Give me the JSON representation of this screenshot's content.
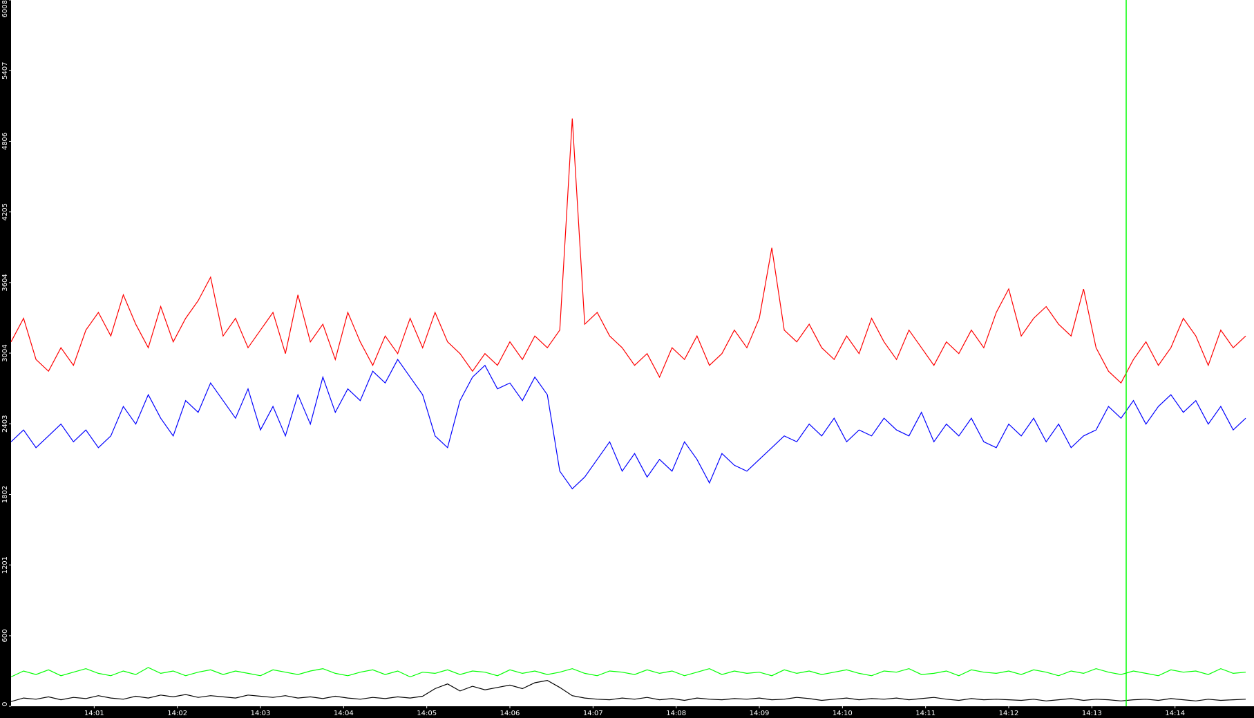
{
  "chart_data": {
    "type": "line",
    "x": [
      840,
      840.15,
      840.3,
      840.45,
      840.6,
      840.75,
      840.9,
      841.05,
      841.2,
      841.35,
      841.5,
      841.65,
      841.8,
      841.95,
      842.1,
      842.25,
      842.4,
      842.55,
      842.7,
      842.85,
      843,
      843.15,
      843.3,
      843.45,
      843.6,
      843.75,
      843.9,
      844.05,
      844.2,
      844.35,
      844.5,
      844.65,
      844.8,
      844.95,
      845.1,
      845.25,
      845.4,
      845.55,
      845.7,
      845.85,
      846,
      846.15,
      846.3,
      846.45,
      846.6,
      846.75,
      846.9,
      847.05,
      847.2,
      847.35,
      847.5,
      847.65,
      847.8,
      847.95,
      848.1,
      848.25,
      848.4,
      848.55,
      848.7,
      848.85,
      849,
      849.15,
      849.3,
      849.45,
      849.6,
      849.75,
      849.9,
      850.05,
      850.2,
      850.35,
      850.5,
      850.65,
      850.8,
      850.95,
      851.1,
      851.25,
      851.4,
      851.55,
      851.7,
      851.85,
      852,
      852.15,
      852.3,
      852.45,
      852.6,
      852.75,
      852.9,
      853.05,
      853.2,
      853.35,
      853.5,
      853.65,
      853.8,
      853.95,
      854.1,
      854.25,
      854.4,
      854.55,
      854.7,
      854.85
    ],
    "series": [
      {
        "color": "#ff0000",
        "values": [
          3100,
          3300,
          2950,
          2850,
          3050,
          2900,
          3200,
          3350,
          3150,
          3500,
          3250,
          3050,
          3400,
          3100,
          3300,
          3450,
          3650,
          3150,
          3300,
          3050,
          3200,
          3350,
          3000,
          3500,
          3100,
          3250,
          2950,
          3350,
          3100,
          2900,
          3150,
          3000,
          3300,
          3050,
          3350,
          3100,
          3000,
          2850,
          3000,
          2900,
          3100,
          2950,
          3150,
          3050,
          3200,
          5000,
          3250,
          3350,
          3150,
          3050,
          2900,
          3000,
          2800,
          3050,
          2950,
          3150,
          2900,
          3000,
          3200,
          3050,
          3300,
          3900,
          3200,
          3100,
          3250,
          3050,
          2950,
          3150,
          3000,
          3300,
          3100,
          2950,
          3200,
          3050,
          2900,
          3100,
          3000,
          3200,
          3050,
          3350,
          3550,
          3150,
          3300,
          3400,
          3250,
          3150,
          3550,
          3050,
          2850,
          2750,
          2950,
          3100,
          2900,
          3050,
          3300,
          3150,
          2900,
          3200,
          3050,
          3150
        ]
      },
      {
        "color": "#0000ff",
        "values": [
          2250,
          2350,
          2200,
          2300,
          2400,
          2250,
          2350,
          2200,
          2300,
          2550,
          2400,
          2650,
          2450,
          2300,
          2600,
          2500,
          2750,
          2600,
          2450,
          2700,
          2350,
          2550,
          2300,
          2650,
          2400,
          2800,
          2500,
          2700,
          2600,
          2850,
          2750,
          2950,
          2800,
          2650,
          2300,
          2200,
          2600,
          2800,
          2900,
          2700,
          2750,
          2600,
          2800,
          2650,
          2000,
          1850,
          1950,
          2100,
          2250,
          2000,
          2150,
          1950,
          2100,
          2000,
          2250,
          2100,
          1900,
          2150,
          2050,
          2000,
          2100,
          2200,
          2300,
          2250,
          2400,
          2300,
          2450,
          2250,
          2350,
          2300,
          2450,
          2350,
          2300,
          2500,
          2250,
          2400,
          2300,
          2450,
          2250,
          2200,
          2400,
          2300,
          2450,
          2250,
          2400,
          2200,
          2300,
          2350,
          2550,
          2450,
          2600,
          2400,
          2550,
          2650,
          2500,
          2600,
          2400,
          2550,
          2350,
          2450
        ]
      },
      {
        "color": "#00ff00",
        "values": [
          250,
          300,
          270,
          310,
          260,
          290,
          320,
          280,
          260,
          300,
          270,
          330,
          280,
          300,
          260,
          290,
          310,
          270,
          300,
          280,
          260,
          310,
          290,
          270,
          300,
          320,
          280,
          260,
          290,
          310,
          270,
          300,
          250,
          290,
          280,
          310,
          270,
          300,
          290,
          260,
          310,
          280,
          300,
          270,
          290,
          320,
          280,
          260,
          300,
          290,
          270,
          310,
          280,
          300,
          260,
          290,
          320,
          270,
          300,
          280,
          290,
          260,
          310,
          280,
          300,
          270,
          290,
          310,
          280,
          260,
          300,
          290,
          320,
          270,
          280,
          300,
          260,
          310,
          290,
          280,
          300,
          270,
          310,
          290,
          260,
          300,
          280,
          320,
          290,
          270,
          300,
          280,
          260,
          310,
          290,
          300,
          270,
          320,
          280,
          290
        ]
      },
      {
        "color": "#000000",
        "values": [
          40,
          70,
          60,
          80,
          55,
          75,
          65,
          90,
          70,
          60,
          85,
          70,
          95,
          80,
          100,
          75,
          90,
          80,
          70,
          95,
          85,
          75,
          90,
          70,
          80,
          65,
          85,
          70,
          60,
          75,
          65,
          80,
          70,
          85,
          150,
          190,
          130,
          170,
          140,
          160,
          180,
          150,
          200,
          220,
          160,
          90,
          70,
          60,
          55,
          70,
          60,
          75,
          55,
          65,
          50,
          70,
          60,
          55,
          65,
          60,
          70,
          55,
          60,
          75,
          65,
          50,
          60,
          70,
          55,
          65,
          60,
          70,
          55,
          65,
          75,
          60,
          50,
          65,
          55,
          60,
          55,
          50,
          60,
          45,
          55,
          65,
          50,
          60,
          55,
          45,
          55,
          60,
          50,
          65,
          55,
          45,
          60,
          50,
          55,
          60
        ]
      }
    ],
    "xlim": [
      840,
      854.95
    ],
    "xticks": [
      {
        "value": 841,
        "label": "14:01"
      },
      {
        "value": 842,
        "label": "14:02"
      },
      {
        "value": 843,
        "label": "14:03"
      },
      {
        "value": 844,
        "label": "14:04"
      },
      {
        "value": 845,
        "label": "14:05"
      },
      {
        "value": 846,
        "label": "14:06"
      },
      {
        "value": 847,
        "label": "14:07"
      },
      {
        "value": 848,
        "label": "14:08"
      },
      {
        "value": 849,
        "label": "14:09"
      },
      {
        "value": 850,
        "label": "14:10"
      },
      {
        "value": 851,
        "label": "14:11"
      },
      {
        "value": 852,
        "label": "14:12"
      },
      {
        "value": 853,
        "label": "14:13"
      },
      {
        "value": 854,
        "label": "14:14"
      }
    ],
    "ylim": [
      0,
      6008
    ],
    "yticks": [
      0,
      600,
      1201,
      1802,
      2403,
      3004,
      3604,
      4205,
      4806,
      5407,
      6008
    ]
  }
}
